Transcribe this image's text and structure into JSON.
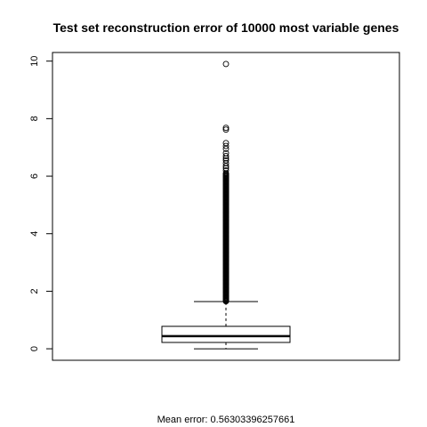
{
  "chart_data": {
    "type": "boxplot",
    "title": "Test set reconstruction error of 10000 most variable genes",
    "xlabel": "",
    "ylabel": "",
    "ylim": [
      -0.4,
      10.3
    ],
    "yticks": [
      "0",
      "2",
      "4",
      "6",
      "8",
      "10"
    ],
    "grid": false,
    "box": {
      "min": 0.0,
      "q1": 0.22,
      "median": 0.44,
      "q3": 0.78,
      "whisker_high": 1.64
    },
    "outliers_dense_range": [
      1.65,
      6.1
    ],
    "outliers_sparse": [
      6.2,
      6.28,
      6.35,
      6.45,
      6.55,
      6.62,
      6.7,
      6.8,
      6.95,
      7.05,
      7.15,
      7.62,
      7.68,
      9.9
    ],
    "footer_text": "Mean error: 0.56303396257661"
  }
}
